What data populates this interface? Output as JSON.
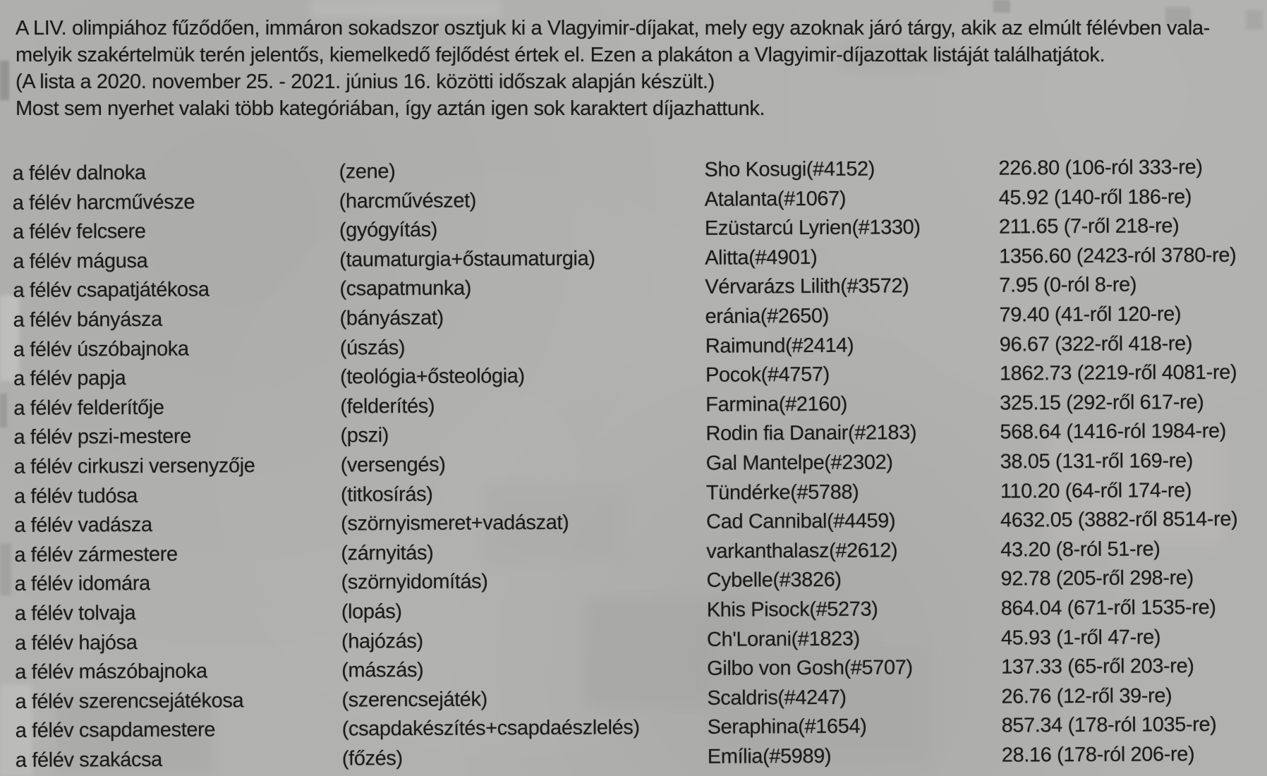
{
  "page": {
    "background_color": "#b1b1af",
    "text_color": "#1b1b1b"
  },
  "intro": {
    "lines": [
      "A LIV. olimpiához fűződően, immáron sokadszor osztjuk ki a Vlagyimir-díjakat, mely egy azoknak járó tárgy, akik az elmúlt félévben vala-",
      "melyik szakértelmük terén jelentős, kiemelkedő fejlődést értek el. Ezen a plakáton a Vlagyimir-díjazottak listáját találhatjátok.",
      "(A lista a 2020. november 25. - 2021. június 16. közötti időszak alapján készült.)",
      "Most sem nyerhet valaki több kategóriában, így aztán igen sok karaktert díjazhattunk."
    ]
  },
  "awards": [
    {
      "title": "a félév dalnoka",
      "category": "(zene)",
      "winner": "Sho Kosugi(#4152)",
      "score": "226.80 (106-ról 333-re)"
    },
    {
      "title": "a félév harcművésze",
      "category": "(harcművészet)",
      "winner": "Atalanta(#1067)",
      "score": "45.92 (140-ről 186-re)"
    },
    {
      "title": "a félév felcsere",
      "category": "(gyógyítás)",
      "winner": "Ezüstarcú Lyrien(#1330)",
      "score": "211.65 (7-ről 218-re)"
    },
    {
      "title": "a félév mágusa",
      "category": "(taumaturgia+őstaumaturgia)",
      "winner": "Alitta(#4901)",
      "score": "1356.60 (2423-ról 3780-re)"
    },
    {
      "title": "a félév csapatjátékosa",
      "category": "(csapatmunka)",
      "winner": "Vérvarázs Lilith(#3572)",
      "score": "7.95 (0-ról 8-re)"
    },
    {
      "title": "a félév bányásza",
      "category": "(bányászat)",
      "winner": "eránia(#2650)",
      "score": "79.40 (41-ről 120-re)"
    },
    {
      "title": "a félév úszóbajnoka",
      "category": "(úszás)",
      "winner": "Raimund(#2414)",
      "score": "96.67 (322-ről 418-re)"
    },
    {
      "title": "a félév papja",
      "category": "(teológia+ősteológia)",
      "winner": "Pocok(#4757)",
      "score": "1862.73 (2219-ről 4081-re)"
    },
    {
      "title": "a félév felderítője",
      "category": "(felderítés)",
      "winner": "Farmina(#2160)",
      "score": "325.15 (292-ről 617-re)"
    },
    {
      "title": "a félév pszi-mestere",
      "category": "(pszi)",
      "winner": "Rodin fia Danair(#2183)",
      "score": "568.64 (1416-ról 1984-re)"
    },
    {
      "title": "a félév cirkuszi versenyzője",
      "category": "(versengés)",
      "winner": "Gal Mantelpe(#2302)",
      "score": "38.05 (131-ről 169-re)"
    },
    {
      "title": "a félév tudósa",
      "category": "(titkosírás)",
      "winner": "Tündérke(#5788)",
      "score": "110.20 (64-ről 174-re)"
    },
    {
      "title": "a félév vadásza",
      "category": "(szörnyismeret+vadászat)",
      "winner": "Cad Cannibal(#4459)",
      "score": "4632.05 (3882-ről 8514-re)"
    },
    {
      "title": "a félév zármestere",
      "category": "(zárnyitás)",
      "winner": "varkanthalasz(#2612)",
      "score": "43.20 (8-ról 51-re)"
    },
    {
      "title": "a félév idomára",
      "category": "(szörnyidomítás)",
      "winner": "Cybelle(#3826)",
      "score": "92.78 (205-ről 298-re)"
    },
    {
      "title": "a félév tolvaja",
      "category": "(lopás)",
      "winner": "Khis Pisock(#5273)",
      "score": "864.04 (671-ről 1535-re)"
    },
    {
      "title": "a félév hajósa",
      "category": "(hajózás)",
      "winner": "Ch'Lorani(#1823)",
      "score": "45.93 (1-ről 47-re)"
    },
    {
      "title": "a félév mászóbajnoka",
      "category": "(mászás)",
      "winner": "Gilbo von Gosh(#5707)",
      "score": "137.33 (65-ről 203-re)"
    },
    {
      "title": "a félév szerencsejátékosa",
      "category": "(szerencsejáték)",
      "winner": "Scaldris(#4247)",
      "score": "26.76 (12-ről 39-re)"
    },
    {
      "title": "a félév csapdamestere",
      "category": "(csapdakészítés+csapdaészlelés)",
      "winner": "Seraphina(#1654)",
      "score": "857.34 (178-ról 1035-re)"
    },
    {
      "title": "a félév szakácsa",
      "category": "(főzés)",
      "winner": "Emília(#5989)",
      "score": "28.16 (178-ról 206-re)"
    }
  ]
}
